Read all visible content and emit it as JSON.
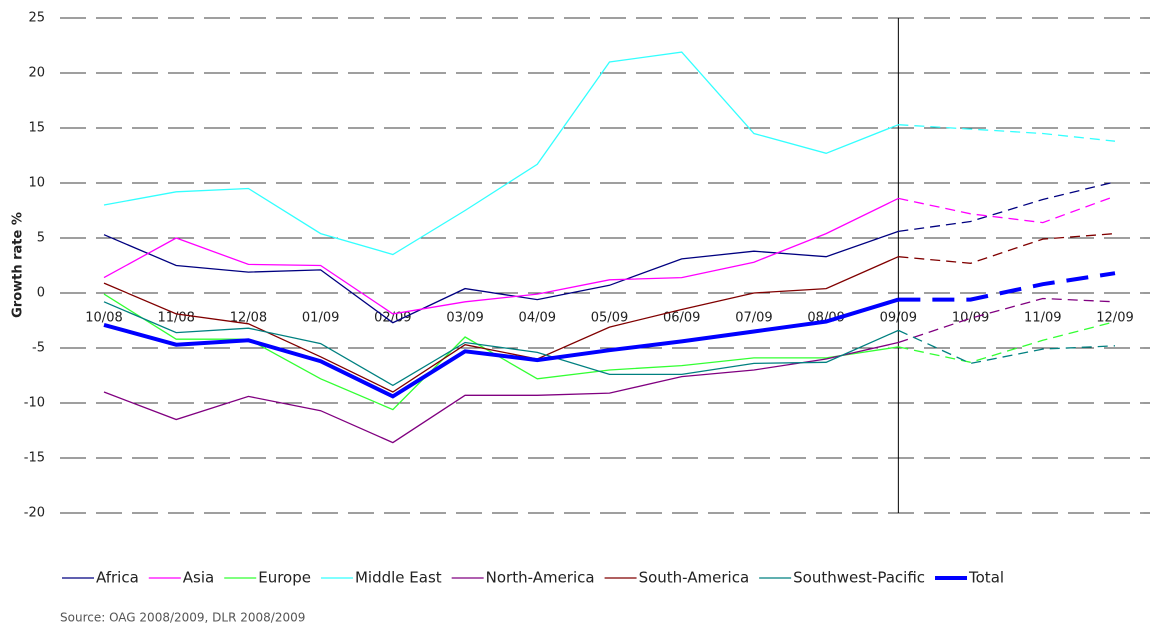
{
  "chart_data": {
    "type": "line",
    "y_label": "Growth rate %",
    "source": "Source: OAG 2008/2009, DLR 2008/2009",
    "categories": [
      "10/08",
      "11/08",
      "12/08",
      "01/09",
      "02/09",
      "03/09",
      "04/09",
      "05/09",
      "06/09",
      "07/09",
      "08/09",
      "09/09",
      "10/09",
      "11/09",
      "12/09"
    ],
    "forecast_from_index": 11,
    "ylim": [
      -20,
      25
    ],
    "yticks": [
      -20,
      -15,
      -10,
      -5,
      0,
      5,
      10,
      15,
      20,
      25
    ],
    "grid": true,
    "legend": "bottom",
    "series": [
      {
        "name": "Africa",
        "color": "#000080",
        "values": [
          5.3,
          2.5,
          1.9,
          2.1,
          -2.7,
          0.4,
          -0.6,
          0.7,
          3.1,
          3.8,
          3.3,
          5.6,
          6.5,
          8.5,
          10.1
        ]
      },
      {
        "name": "Asia",
        "color": "#ff00ff",
        "values": [
          1.4,
          5.0,
          2.6,
          2.5,
          -1.9,
          -0.8,
          -0.1,
          1.2,
          1.4,
          2.8,
          5.4,
          8.6,
          7.2,
          6.4,
          8.8
        ]
      },
      {
        "name": "Europe",
        "color": "#33ff33",
        "values": [
          -0.1,
          -4.2,
          -4.2,
          -7.8,
          -10.6,
          -4.0,
          -7.8,
          -7.0,
          -6.6,
          -5.9,
          -5.9,
          -4.9,
          -6.3,
          -4.3,
          -2.6
        ]
      },
      {
        "name": "Middle East",
        "color": "#33ffff",
        "values": [
          8.0,
          9.2,
          9.5,
          5.4,
          3.5,
          7.5,
          11.7,
          21.0,
          21.9,
          14.5,
          12.7,
          15.3,
          14.9,
          14.5,
          13.8
        ]
      },
      {
        "name": "North-America",
        "color": "#800080",
        "values": [
          -9.0,
          -11.5,
          -9.4,
          -10.7,
          -13.6,
          -9.3,
          -9.3,
          -9.1,
          -7.6,
          -7.0,
          -6.0,
          -4.5,
          -2.3,
          -0.5,
          -0.8
        ]
      },
      {
        "name": "South-America",
        "color": "#800000",
        "values": [
          0.9,
          -1.9,
          -2.8,
          -5.8,
          -9.0,
          -4.7,
          -6.0,
          -3.1,
          -1.5,
          0.0,
          0.4,
          3.3,
          2.7,
          4.9,
          5.4
        ]
      },
      {
        "name": "Southwest-Pacific",
        "color": "#008080",
        "values": [
          -0.8,
          -3.6,
          -3.2,
          -4.6,
          -8.4,
          -4.5,
          -5.4,
          -7.4,
          -7.4,
          -6.4,
          -6.3,
          -3.4,
          -6.4,
          -5.1,
          -4.8
        ]
      },
      {
        "name": "Total",
        "color": "#0000ff",
        "width": 4,
        "values": [
          -2.9,
          -4.7,
          -4.3,
          -6.2,
          -9.4,
          -5.3,
          -6.1,
          -5.2,
          -4.4,
          -3.5,
          -2.6,
          -0.6,
          -0.6,
          0.8,
          1.8
        ]
      }
    ]
  }
}
